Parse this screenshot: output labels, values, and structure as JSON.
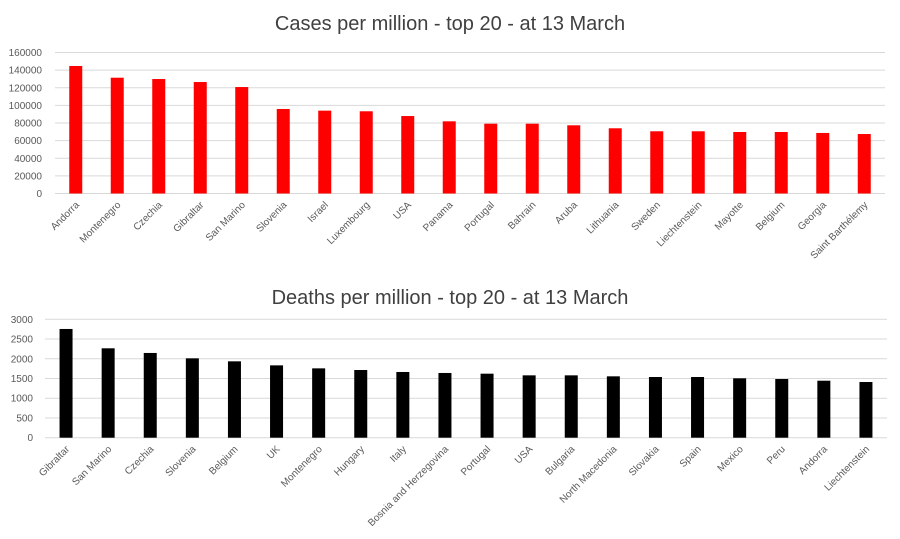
{
  "chart_data": [
    {
      "type": "bar",
      "title": "Cases per million - top 20 - at 13 March",
      "xlabel": "",
      "ylabel": "",
      "ylim": [
        0,
        160000
      ],
      "yticks": [
        0,
        20000,
        40000,
        60000,
        80000,
        100000,
        120000,
        140000,
        160000
      ],
      "grid": true,
      "bar_color": "#ff0000",
      "categories": [
        "Andorra",
        "Montenegro",
        "Czechia",
        "Gibraltar",
        "San Marino",
        "Slovenia",
        "Israel",
        "Luxembourg",
        "USA",
        "Panama",
        "Portugal",
        "Bahrain",
        "Aruba",
        "Lithuania",
        "Sweden",
        "Liechtenstein",
        "Mayotte",
        "Belgium",
        "Georgia",
        "Saint Barthélemy"
      ],
      "values": [
        144700,
        131400,
        129900,
        126500,
        120800,
        95900,
        94000,
        93300,
        87900,
        81900,
        79200,
        79200,
        77400,
        74000,
        70600,
        70600,
        69800,
        69800,
        68700,
        67500
      ]
    },
    {
      "type": "bar",
      "title": "Deaths per million - top 20 - at 13 March",
      "xlabel": "",
      "ylabel": "",
      "ylim": [
        0,
        3000
      ],
      "yticks": [
        0,
        500,
        1000,
        1500,
        2000,
        2500,
        3000
      ],
      "grid": true,
      "bar_color": "#000000",
      "categories": [
        "Gibraltar",
        "San Marino",
        "Czechia",
        "Slovenia",
        "Belgium",
        "UK",
        "Montenegro",
        "Hungary",
        "Italy",
        "Bosnia and Herzegovina",
        "Portugal",
        "USA",
        "Bulgaria",
        "North Macedonia",
        "Slovakia",
        "Spain",
        "Mexico",
        "Peru",
        "Andorra",
        "Liechtenstein"
      ],
      "values": [
        2755,
        2265,
        2147,
        2011,
        1935,
        1833,
        1757,
        1715,
        1665,
        1640,
        1622,
        1580,
        1580,
        1555,
        1538,
        1538,
        1505,
        1487,
        1444,
        1411
      ]
    }
  ]
}
